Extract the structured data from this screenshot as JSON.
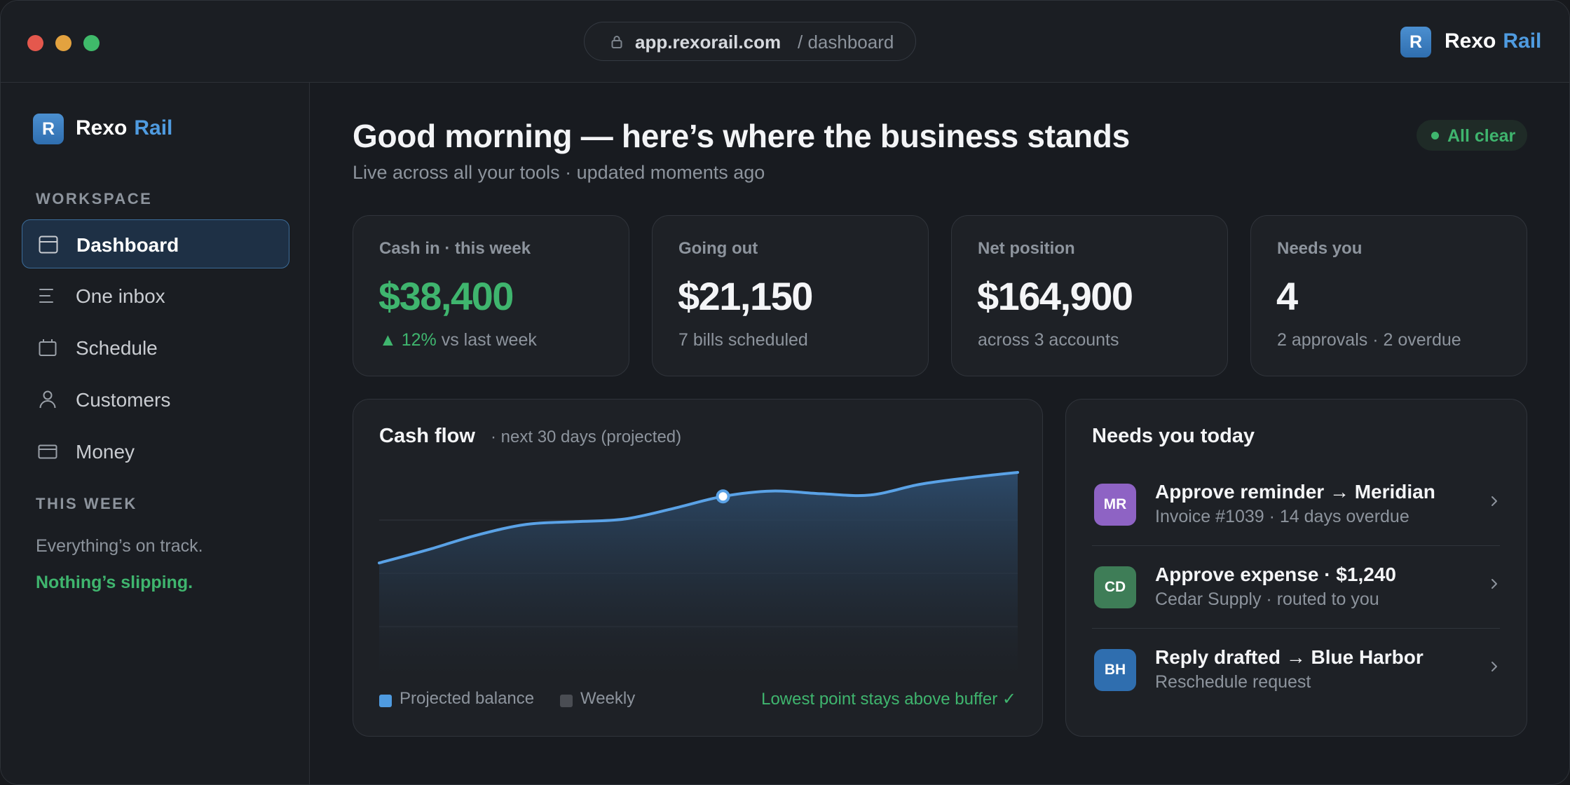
{
  "browser": {
    "url_host": "app.rexorail.com",
    "url_path": "/ dashboard"
  },
  "brand": {
    "logo_letter": "R",
    "name_primary": "Rexo",
    "name_accent": "Rail",
    "accent_color": "#4f9be0"
  },
  "sidebar": {
    "workspace_label": "WORKSPACE",
    "items": [
      {
        "label": "Dashboard",
        "icon": "dashboard-icon",
        "active": true
      },
      {
        "label": "One inbox",
        "icon": "inbox-icon",
        "active": false
      },
      {
        "label": "Schedule",
        "icon": "calendar-icon",
        "active": false
      },
      {
        "label": "Customers",
        "icon": "user-icon",
        "active": false
      },
      {
        "label": "Money",
        "icon": "wallet-icon",
        "active": false
      }
    ],
    "week_label": "THIS WEEK",
    "week_status": "Everything’s on track.",
    "week_highlight": "Nothing’s slipping."
  },
  "header": {
    "title": "Good morning — here’s where the business stands",
    "subtitle": "Live across all your tools · updated moments ago",
    "status": "All clear",
    "status_color": "#3fb56e"
  },
  "kpis": [
    {
      "label": "Cash in · this week",
      "value": "$38,400",
      "foot_up": "▲ 12%",
      "foot": "vs last week"
    },
    {
      "label": "Going out",
      "value": "$21,150",
      "foot_up": "",
      "foot": "7 bills scheduled"
    },
    {
      "label": "Net position",
      "value": "$164,900",
      "foot_up": "",
      "foot": "across 3 accounts"
    },
    {
      "label": "Needs you",
      "value": "4",
      "foot_up": "",
      "foot": "2 approvals · 2 overdue"
    }
  ],
  "cashflow": {
    "title": "Cash flow",
    "subtitle": "· next 30 days (projected)",
    "legend": [
      "Projected balance",
      "Weekly"
    ],
    "legend_colors": [
      "#4f9be0",
      "#4a4d53"
    ],
    "note": "Lowest point stays above buffer ✓"
  },
  "chart_data": {
    "type": "area",
    "title": "Cash flow",
    "series": [
      {
        "name": "Projected balance",
        "values": [
          0.22,
          0.32,
          0.43,
          0.51,
          0.53,
          0.55,
          0.63,
          0.72,
          0.76,
          0.74,
          0.73,
          0.81,
          0.86,
          0.9
        ]
      }
    ],
    "highlight_index": 7,
    "ylim": [
      0,
      1
    ],
    "grid": "horizontal",
    "line_color": "#5aa2e6"
  },
  "tasks": {
    "title": "Needs you today",
    "items": [
      {
        "initials": "MR",
        "color": "#8e63c4",
        "title": "Approve reminder → Meridian",
        "subtitle": "Invoice #1039 · 14 days overdue"
      },
      {
        "initials": "CD",
        "color": "#3e7d57",
        "title": "Approve expense · $1,240",
        "subtitle": "Cedar Supply · routed to you"
      },
      {
        "initials": "BH",
        "color": "#2f6eaf",
        "title": "Reply drafted → Blue Harbor",
        "subtitle": "Reschedule request"
      }
    ]
  }
}
